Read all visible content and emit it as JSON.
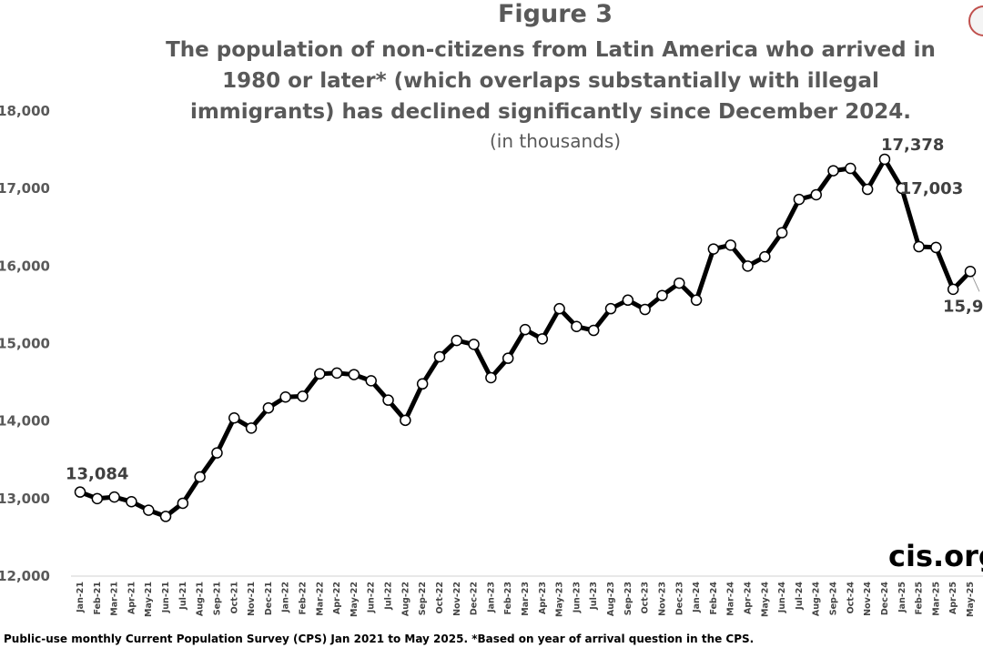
{
  "figure": {
    "title": "Figure 3",
    "subtitle": "The population of non-citizens from Latin America who arrived in 1980 or later* (which overlaps substantially with illegal immigrants) has declined significantly since December 2024.",
    "units": "(in thousands)",
    "source": "Public-use monthly Current Population Survey (CPS) Jan 2021 to May 2025.  *Based on year of arrival question in the CPS.",
    "brand": "cis.org"
  },
  "colors": {
    "line": "#000000",
    "marker_fill": "#ffffff",
    "text": "#595959",
    "corner_circle": "#c0504d"
  },
  "chart_data": {
    "type": "line",
    "title": "Figure 3",
    "subtitle": "The population of non-citizens from Latin America who arrived in 1980 or later* (which overlaps substantially with illegal immigrants) has declined significantly since December 2024.",
    "xlabel": "",
    "ylabel": "",
    "ylim": [
      12000,
      18000
    ],
    "yticks": [
      "12,000",
      "13,000",
      "14,000",
      "15,000",
      "16,000",
      "17,000",
      "18,000"
    ],
    "grid": false,
    "categories": [
      "Jan-21",
      "Feb-21",
      "Mar-21",
      "Apr-21",
      "May-21",
      "Jun-21",
      "Jul-21",
      "Aug-21",
      "Sep-21",
      "Oct-21",
      "Nov-21",
      "Dec-21",
      "Jan-22",
      "Feb-22",
      "Mar-22",
      "Apr-22",
      "May-22",
      "Jun-22",
      "Jul-22",
      "Aug-22",
      "Sep-22",
      "Oct-22",
      "Nov-22",
      "Dec-22",
      "Jan-23",
      "Feb-23",
      "Mar-23",
      "Apr-23",
      "May-23",
      "Jun-23",
      "Jul-23",
      "Aug-23",
      "Sep-23",
      "Oct-23",
      "Nov-23",
      "Dec-23",
      "Jan-24",
      "Feb-24",
      "Mar-24",
      "Apr-24",
      "May-24",
      "Jun-24",
      "Jul-24",
      "Aug-24",
      "Sep-24",
      "Oct-24",
      "Nov-24",
      "Dec-24",
      "Jan-25",
      "Feb-25",
      "Mar-25",
      "Apr-25",
      "May-25"
    ],
    "values": [
      13084,
      13000,
      13020,
      12960,
      12850,
      12770,
      12940,
      13280,
      13590,
      14040,
      13910,
      14170,
      14310,
      14320,
      14610,
      14620,
      14600,
      14520,
      14270,
      14010,
      14480,
      14830,
      15040,
      14990,
      14560,
      14810,
      15180,
      15060,
      15450,
      15220,
      15170,
      15450,
      15560,
      15440,
      15620,
      15780,
      15560,
      16220,
      16270,
      16000,
      16120,
      16430,
      16860,
      16920,
      17230,
      17260,
      16990,
      17378,
      17003,
      16250,
      16240,
      15700,
      15930
    ],
    "annotations": [
      {
        "index": 0,
        "text": "13,084"
      },
      {
        "index": 47,
        "text": "17,378"
      },
      {
        "index": 48,
        "text": "17,003"
      },
      {
        "index": 52,
        "text": "15,9"
      }
    ]
  }
}
